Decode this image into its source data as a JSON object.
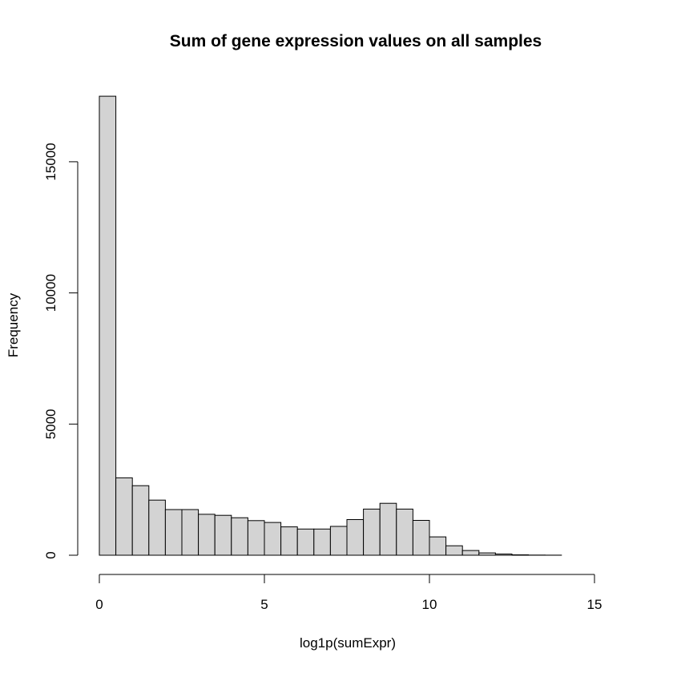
{
  "chart_data": {
    "type": "histogram",
    "title": "Sum of gene expression values on all samples",
    "xlabel": "log1p(sumExpr)",
    "ylabel": "Frequency",
    "bin_width": 0.5,
    "bins": [
      {
        "x0": 0.0,
        "x1": 0.5,
        "count": 17500
      },
      {
        "x0": 0.5,
        "x1": 1.0,
        "count": 2950
      },
      {
        "x0": 1.0,
        "x1": 1.5,
        "count": 2650
      },
      {
        "x0": 1.5,
        "x1": 2.0,
        "count": 2100
      },
      {
        "x0": 2.0,
        "x1": 2.5,
        "count": 1740
      },
      {
        "x0": 2.5,
        "x1": 3.0,
        "count": 1740
      },
      {
        "x0": 3.0,
        "x1": 3.5,
        "count": 1560
      },
      {
        "x0": 3.5,
        "x1": 4.0,
        "count": 1520
      },
      {
        "x0": 4.0,
        "x1": 4.5,
        "count": 1430
      },
      {
        "x0": 4.5,
        "x1": 5.0,
        "count": 1320
      },
      {
        "x0": 5.0,
        "x1": 5.5,
        "count": 1250
      },
      {
        "x0": 5.5,
        "x1": 6.0,
        "count": 1080
      },
      {
        "x0": 6.0,
        "x1": 6.5,
        "count": 1000
      },
      {
        "x0": 6.5,
        "x1": 7.0,
        "count": 1000
      },
      {
        "x0": 7.0,
        "x1": 7.5,
        "count": 1100
      },
      {
        "x0": 7.5,
        "x1": 8.0,
        "count": 1360
      },
      {
        "x0": 8.0,
        "x1": 8.5,
        "count": 1760
      },
      {
        "x0": 8.5,
        "x1": 9.0,
        "count": 1980
      },
      {
        "x0": 9.0,
        "x1": 9.5,
        "count": 1760
      },
      {
        "x0": 9.5,
        "x1": 10.0,
        "count": 1330
      },
      {
        "x0": 10.0,
        "x1": 10.5,
        "count": 700
      },
      {
        "x0": 10.5,
        "x1": 11.0,
        "count": 360
      },
      {
        "x0": 11.0,
        "x1": 11.5,
        "count": 180
      },
      {
        "x0": 11.5,
        "x1": 12.0,
        "count": 90
      },
      {
        "x0": 12.0,
        "x1": 12.5,
        "count": 45
      },
      {
        "x0": 12.5,
        "x1": 13.0,
        "count": 15
      },
      {
        "x0": 13.0,
        "x1": 13.5,
        "count": 6
      },
      {
        "x0": 13.5,
        "x1": 14.0,
        "count": 3
      },
      {
        "x0": 14.0,
        "x1": 14.5,
        "count": 1
      },
      {
        "x0": 14.5,
        "x1": 15.0,
        "count": 1
      },
      {
        "x0": 15.0,
        "x1": 15.5,
        "count": 1
      }
    ],
    "xlim": [
      0,
      15.5
    ],
    "ylim": [
      0,
      17500
    ],
    "x_ticks": [
      0,
      5,
      10,
      15
    ],
    "y_ticks": [
      0,
      5000,
      10000,
      15000
    ],
    "bar_fill": "#d3d3d3",
    "bar_stroke": "#000000",
    "grid": false
  }
}
